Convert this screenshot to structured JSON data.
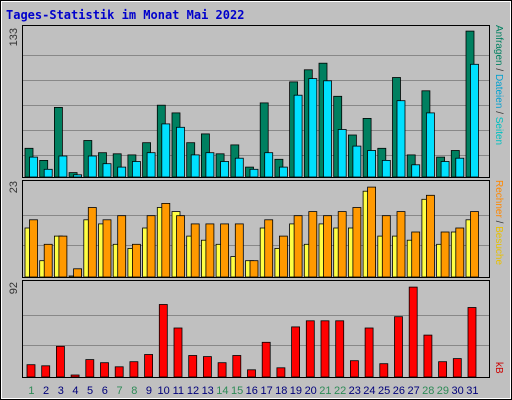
{
  "chart_data": [
    {
      "type": "bar",
      "title": "Tages-Statistik im Monat Mai 2022",
      "y_max_label": "133",
      "categories": [
        "1",
        "2",
        "3",
        "4",
        "5",
        "6",
        "7",
        "8",
        "9",
        "10",
        "11",
        "12",
        "13",
        "14",
        "15",
        "16",
        "17",
        "18",
        "19",
        "20",
        "21",
        "22",
        "23",
        "24",
        "25",
        "26",
        "27",
        "28",
        "29",
        "30",
        "31"
      ],
      "weekend_days": [
        "1",
        "7",
        "8",
        "14",
        "15",
        "21",
        "22",
        "28",
        "29"
      ],
      "series": [
        {
          "name": "Anfragen",
          "color": "#008060",
          "values": [
            26,
            15,
            63,
            4,
            33,
            22,
            21,
            20,
            31,
            65,
            58,
            31,
            39,
            21,
            29,
            9,
            67,
            16,
            86,
            97,
            103,
            73,
            38,
            53,
            26,
            90,
            20,
            78,
            18,
            24,
            132
          ]
        },
        {
          "name": "Dateien",
          "color": "#00e0ff",
          "values": [
            18,
            7,
            19,
            2,
            19,
            12,
            9,
            14,
            22,
            48,
            45,
            20,
            22,
            14,
            17,
            7,
            22,
            9,
            74,
            89,
            87,
            43,
            28,
            24,
            15,
            69,
            11,
            58,
            14,
            17,
            102
          ]
        }
      ],
      "side_labels": [
        {
          "text": "Anfragen",
          "color": "#008060"
        },
        {
          "text": "/",
          "color": "#333333"
        },
        {
          "text": "Dateien",
          "color": "#00a0d0"
        },
        {
          "text": "/",
          "color": "#333333"
        },
        {
          "text": "Seiten",
          "color": "#00c0c0"
        }
      ]
    },
    {
      "type": "bar",
      "y_max_label": "23",
      "categories": [
        "1",
        "2",
        "3",
        "4",
        "5",
        "6",
        "7",
        "8",
        "9",
        "10",
        "11",
        "12",
        "13",
        "14",
        "15",
        "16",
        "17",
        "18",
        "19",
        "20",
        "21",
        "22",
        "23",
        "24",
        "25",
        "26",
        "27",
        "28",
        "29",
        "30",
        "31"
      ],
      "series": [
        {
          "name": "Besuche",
          "color": "#ffff44",
          "values": [
            12,
            4,
            10,
            0,
            14,
            13,
            8,
            7,
            12,
            17,
            16,
            10,
            9,
            8,
            5,
            4,
            12,
            7,
            13,
            8,
            13,
            12,
            12,
            21,
            10,
            10,
            9,
            19,
            8,
            11,
            14
          ]
        },
        {
          "name": "Rechner",
          "color": "#ff9900",
          "values": [
            14,
            8,
            10,
            2,
            17,
            14,
            15,
            8,
            15,
            18,
            15,
            13,
            13,
            13,
            13,
            4,
            14,
            10,
            15,
            16,
            15,
            16,
            17,
            22,
            15,
            16,
            11,
            20,
            11,
            12,
            16
          ]
        }
      ],
      "side_labels": [
        {
          "text": "Rechner",
          "color": "#ff8800"
        },
        {
          "text": "/",
          "color": "#333333"
        },
        {
          "text": "Besuche",
          "color": "#e8c000"
        }
      ]
    },
    {
      "type": "bar",
      "y_max_label": "92",
      "categories": [
        "1",
        "2",
        "3",
        "4",
        "5",
        "6",
        "7",
        "8",
        "9",
        "10",
        "11",
        "12",
        "13",
        "14",
        "15",
        "16",
        "17",
        "18",
        "19",
        "20",
        "21",
        "22",
        "23",
        "24",
        "25",
        "26",
        "27",
        "28",
        "29",
        "30",
        "31"
      ],
      "series": [
        {
          "name": "kB",
          "color": "#ff0000",
          "values": [
            12,
            11,
            30,
            2,
            17,
            14,
            10,
            15,
            22,
            71,
            48,
            21,
            20,
            14,
            21,
            7,
            34,
            9,
            49,
            55,
            55,
            55,
            16,
            48,
            13,
            59,
            88,
            41,
            15,
            18,
            68
          ]
        }
      ],
      "side_labels": [
        {
          "text": "kB",
          "color": "#cc0000"
        }
      ]
    }
  ]
}
